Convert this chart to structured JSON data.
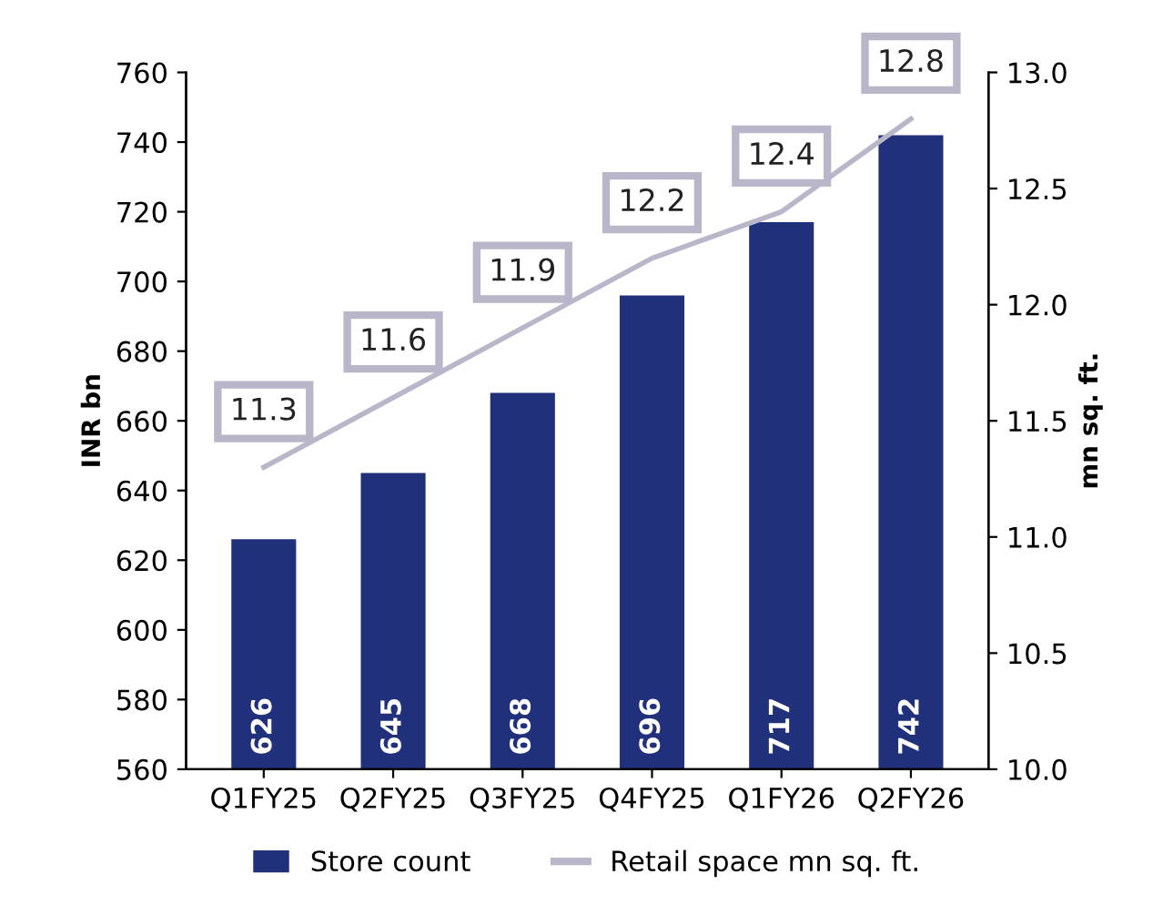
{
  "chart_data": {
    "type": "bar",
    "ylabel": "INR bn",
    "y2label": "mn sq. ft.",
    "categories": [
      "Q1FY25",
      "Q2FY25",
      "Q3FY25",
      "Q4FY25",
      "Q1FY26",
      "Q2FY26"
    ],
    "series": [
      {
        "name": "Store count",
        "color": "#21307a",
        "values": [
          626,
          645,
          668,
          696,
          717,
          742
        ],
        "data_labels": true
      },
      {
        "name": "Retail space mn sq. ft.",
        "type": "line",
        "axis": "y2",
        "color": "#b9b6c9",
        "marker": "none",
        "line_style": "solid",
        "values": [
          11.3,
          11.6,
          11.9,
          12.2,
          12.4,
          12.8
        ],
        "data_labels": true
      }
    ],
    "ylim": [
      560,
      760
    ],
    "yticks": [
      560,
      580,
      600,
      620,
      640,
      660,
      680,
      700,
      720,
      740,
      760
    ],
    "y2lim": [
      10.0,
      13.0
    ],
    "y2ticks": [
      {
        "value": 10.0,
        "label": "10.0"
      },
      {
        "value": 10.5,
        "label": "10.5"
      },
      {
        "value": 11.0,
        "label": "11.0"
      },
      {
        "value": 11.5,
        "label": "11.5"
      },
      {
        "value": 12.0,
        "label": "12.0"
      },
      {
        "value": 12.5,
        "label": "12.5"
      },
      {
        "value": 13.0,
        "label": "13.0"
      }
    ],
    "grid": false,
    "legend": "bottom"
  }
}
